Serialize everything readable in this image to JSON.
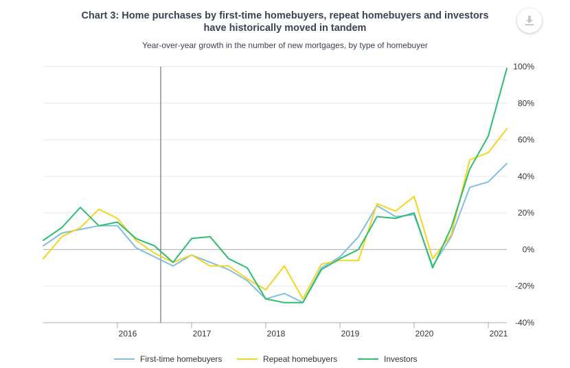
{
  "title_line1": "Chart 3: Home purchases by first-time homebuyers, repeat homebuyers and investors",
  "title_line2": "have historically moved in tandem",
  "subtitle": "Year-over-year growth in the number of new mortgages, by type of homebuyer",
  "download_icon": "download-icon",
  "colors": {
    "first_time": "#7fbfdc",
    "repeat": "#f5d323",
    "investors": "#2dbd6e",
    "grid": "#e6e6e6",
    "zero_line": "#aaaaaa",
    "marker_line": "#555555"
  },
  "chart_data": {
    "type": "line",
    "title": "Chart 3: Home purchases by first-time homebuyers, repeat homebuyers and investors have historically moved in tandem",
    "subtitle": "Year-over-year growth in the number of new mortgages, by type of homebuyer",
    "x": [
      "2015-Q1",
      "2015-Q2",
      "2015-Q3",
      "2015-Q4",
      "2016-Q1",
      "2016-Q2",
      "2016-Q3",
      "2016-Q4",
      "2017-Q1",
      "2017-Q2",
      "2017-Q3",
      "2017-Q4",
      "2018-Q1",
      "2018-Q2",
      "2018-Q3",
      "2018-Q4",
      "2019-Q1",
      "2019-Q2",
      "2019-Q3",
      "2019-Q4",
      "2020-Q1",
      "2020-Q2",
      "2020-Q3",
      "2020-Q4",
      "2021-Q1",
      "2021-Q2"
    ],
    "x_tick_labels": [
      "2016",
      "2017",
      "2018",
      "2019",
      "2020",
      "2021"
    ],
    "y_tick_labels": [
      "100%",
      "80%",
      "60%",
      "40%",
      "20%",
      "0%",
      "-20%",
      "-40%"
    ],
    "ylim": [
      -40,
      100
    ],
    "y_unit": "%",
    "grid": true,
    "vertical_marker_x": "2016-Q3",
    "legend_position": "bottom",
    "series": [
      {
        "name": "First-time homebuyers",
        "color_key": "first_time",
        "values": [
          2,
          9,
          11,
          13,
          13,
          1,
          -4,
          -9,
          -3,
          -7,
          -11,
          -17,
          -27,
          -24,
          -29,
          -10,
          -4,
          7,
          24,
          18,
          19,
          -9,
          7,
          34,
          37,
          47
        ]
      },
      {
        "name": "Repeat homebuyers",
        "color_key": "repeat",
        "values": [
          -5,
          7,
          12,
          22,
          17,
          5,
          -2,
          -7,
          -3,
          -9,
          -9,
          -16,
          -22,
          -9,
          -27,
          -8,
          -6,
          -6,
          25,
          21,
          29,
          -5,
          8,
          49,
          53,
          66
        ]
      },
      {
        "name": "Investors",
        "color_key": "investors",
        "values": [
          5,
          12,
          23,
          13,
          15,
          6,
          2,
          -7,
          6,
          7,
          -5,
          -10,
          -27,
          -29,
          -29,
          -11,
          -5,
          0,
          18,
          17,
          20,
          -10,
          12,
          44,
          62,
          99
        ]
      }
    ]
  },
  "legend": {
    "first_time": "First-time homebuyers",
    "repeat": "Repeat homebuyers",
    "investors": "Investors"
  }
}
